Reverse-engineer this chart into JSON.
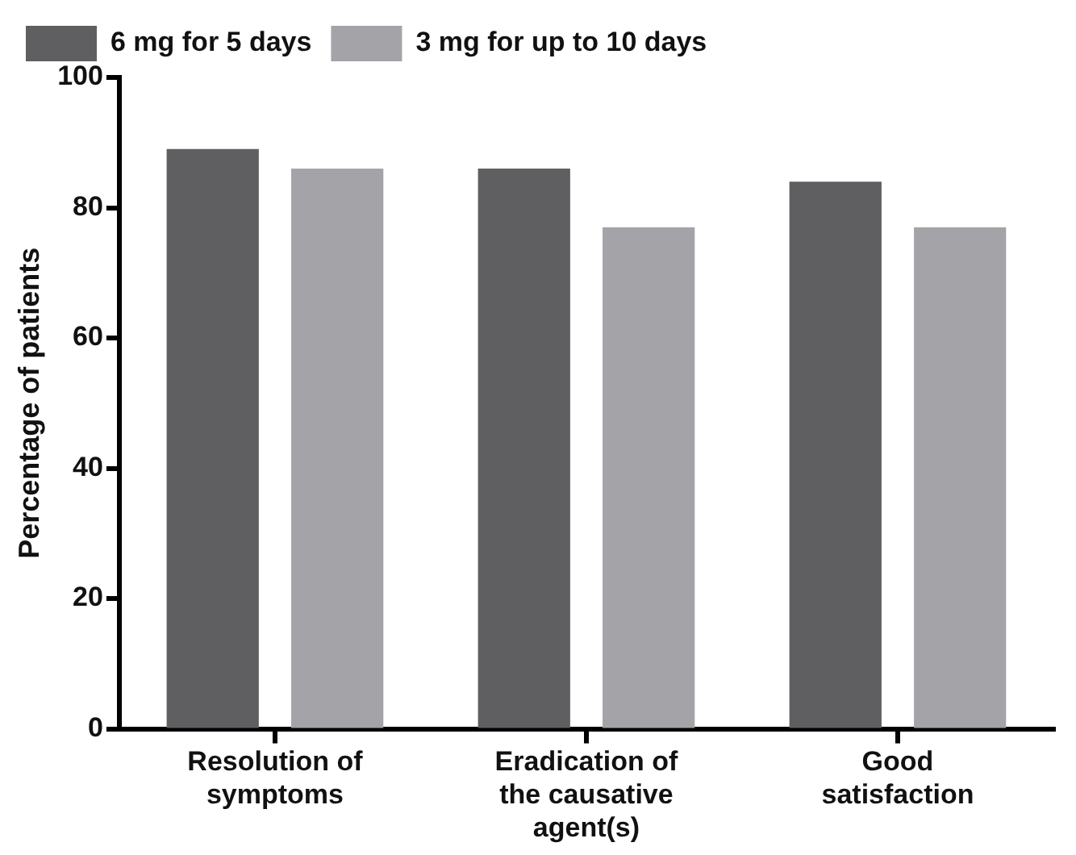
{
  "chart_data": {
    "type": "bar",
    "ylabel": "Percentage of patients",
    "categories": [
      "Resolution of symptoms",
      "Eradication of the causative agent(s)",
      "Good satisfaction"
    ],
    "series": [
      {
        "name": "6 mg for 5 days",
        "color": "#5f5f61",
        "values": [
          89,
          86,
          84
        ]
      },
      {
        "name": "3 mg for up to 10 days",
        "color": "#a4a3a8",
        "values": [
          86,
          77,
          77
        ]
      }
    ],
    "ylim": [
      0,
      100
    ],
    "yticks": [
      0,
      20,
      40,
      60,
      80,
      100
    ],
    "grid": false,
    "legend": "top left"
  }
}
